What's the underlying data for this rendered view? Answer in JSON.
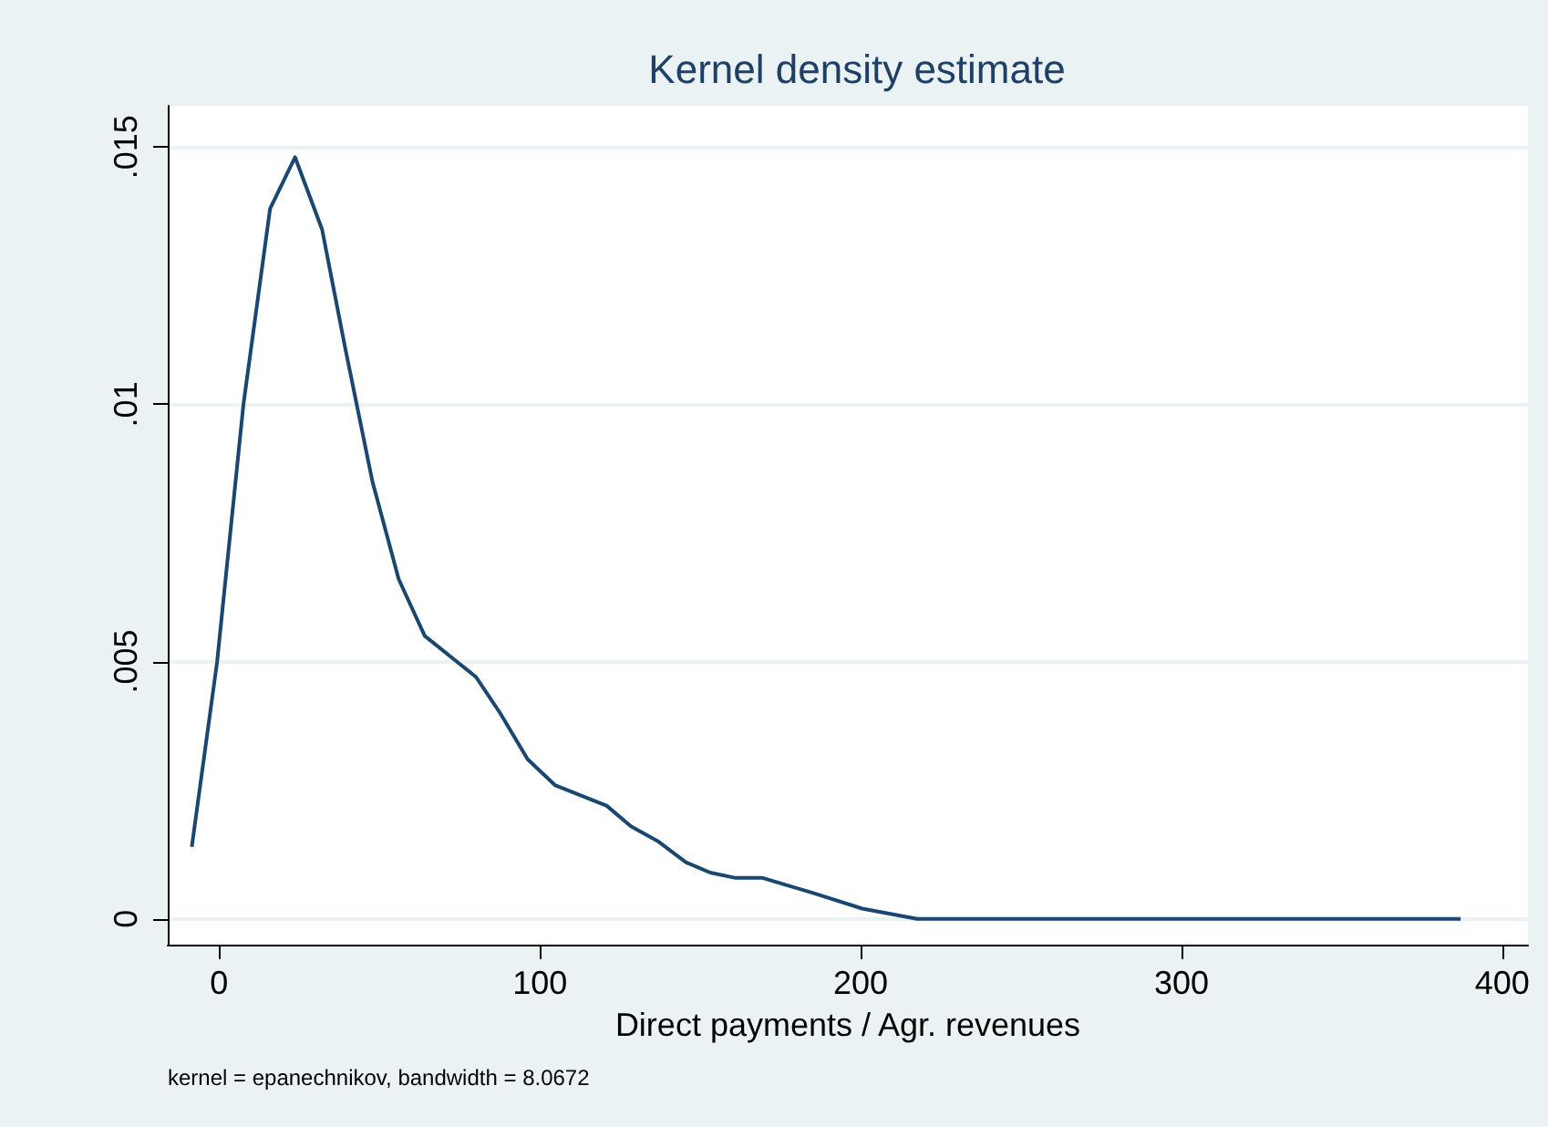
{
  "chart_data": {
    "type": "line",
    "title": "Kernel density estimate",
    "xlabel": "Direct payments / Agr. revenues",
    "annotations": [
      "kernel = epanechnikov, bandwidth = 8.0672"
    ],
    "x": [
      -8.5,
      -0.6,
      7.6,
      15.9,
      23.7,
      32.1,
      39.3,
      47.8,
      56,
      64.1,
      80.1,
      87.6,
      96.2,
      104.7,
      120.8,
      128.4,
      137,
      145.5,
      153.1,
      160.7,
      169.2,
      185.4,
      200.5,
      217.6,
      250,
      300,
      340,
      365,
      387
    ],
    "series": [
      {
        "color": "#1a476f",
        "values": [
          0.0014,
          0.005,
          0.01,
          0.0138,
          0.0148,
          0.0134,
          0.0111,
          0.0085,
          0.0066,
          0.0055,
          0.0047,
          0.004,
          0.0031,
          0.0026,
          0.0022,
          0.0018,
          0.0015,
          0.0011,
          0.0009,
          0.0008,
          0.0008,
          0.0005,
          0.0002,
          0,
          0,
          0,
          0,
          0,
          0
        ]
      }
    ],
    "xlim": [
      -16,
      408
    ],
    "xticks": [
      0,
      100,
      200,
      300,
      400
    ],
    "ylim": [
      -0.0005,
      0.0158
    ],
    "yticks": [
      0,
      {
        "value": 0.005,
        "label": ".005"
      },
      {
        "value": 0.01,
        "label": ".01"
      },
      {
        "value": 0.015,
        "label": ".015"
      }
    ],
    "grid": "y",
    "marker": "none",
    "line_style": "solid"
  }
}
